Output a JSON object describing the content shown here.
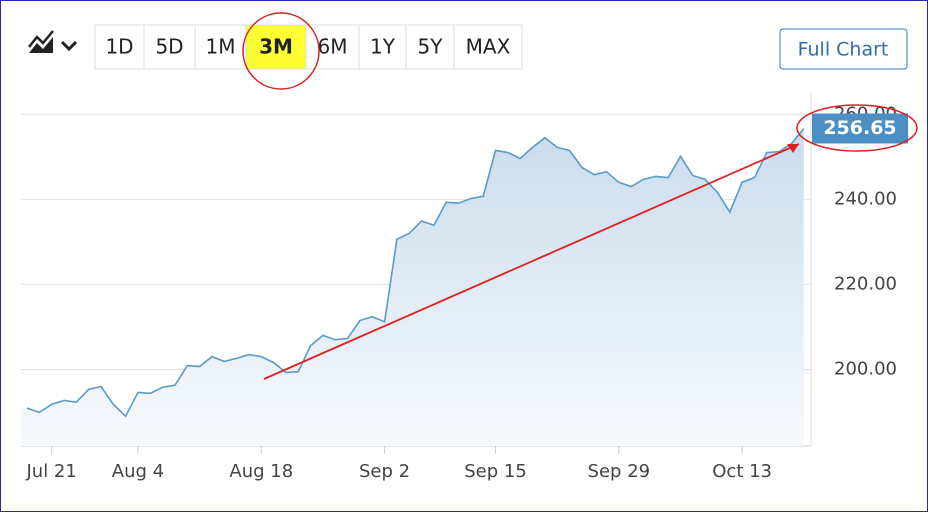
{
  "toolbar": {
    "ranges": [
      "1D",
      "5D",
      "1M",
      "3M",
      "6M",
      "1Y",
      "5Y",
      "MAX"
    ],
    "selected": 3,
    "full_chart": "Full Chart"
  },
  "chart_data": {
    "type": "area",
    "categories": [
      null,
      null,
      "Jul 21",
      null,
      null,
      null,
      null,
      null,
      null,
      "Aug 4",
      null,
      null,
      null,
      null,
      null,
      null,
      null,
      null,
      null,
      "Aug 18",
      null,
      null,
      null,
      null,
      null,
      null,
      null,
      null,
      null,
      "Sep 2",
      null,
      null,
      null,
      null,
      null,
      null,
      null,
      null,
      "Sep 15",
      null,
      null,
      null,
      null,
      null,
      null,
      null,
      null,
      null,
      "Sep 29",
      null,
      null,
      null,
      null,
      null,
      null,
      null,
      null,
      null,
      "Oct 13",
      null,
      null,
      null,
      null,
      null
    ],
    "values": [
      190.9,
      189.9,
      191.8,
      192.7,
      192.3,
      195.3,
      196.0,
      191.8,
      189.0,
      194.6,
      194.4,
      195.8,
      196.3,
      200.9,
      200.7,
      203.0,
      201.9,
      202.6,
      203.5,
      203.0,
      201.6,
      199.3,
      199.5,
      205.6,
      208.0,
      207.0,
      207.3,
      211.5,
      212.4,
      211.2,
      230.6,
      232.0,
      234.9,
      233.9,
      239.3,
      239.1,
      240.2,
      240.7,
      251.5,
      251.0,
      249.6,
      252.2,
      254.5,
      252.2,
      251.5,
      247.5,
      245.8,
      246.5,
      244.0,
      243.0,
      244.7,
      245.4,
      245.1,
      250.1,
      245.6,
      244.7,
      241.6,
      237.0,
      244.0,
      245.1,
      251.0,
      251.2,
      253.1,
      256.65
    ],
    "color": "#5a9bc6",
    "ylim": [
      182,
      265
    ],
    "yticks": [
      {
        "value": 200,
        "label": "200.00"
      },
      {
        "value": 220,
        "label": "220.00"
      },
      {
        "value": 240,
        "label": "240.00"
      },
      {
        "value": 260,
        "label": "260.00"
      }
    ],
    "grid": true
  }
}
